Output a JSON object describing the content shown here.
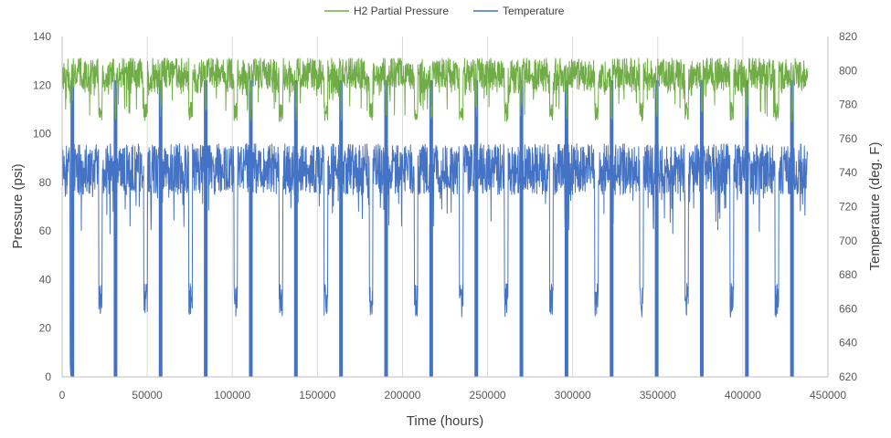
{
  "chart_data": {
    "type": "line",
    "xlabel": "Time (hours)",
    "ylabel": "Pressure (psi)",
    "y2label": "Temperature (deg. F)",
    "xlim": [
      0,
      450000
    ],
    "ylim": [
      0,
      140
    ],
    "y2lim": [
      620,
      820
    ],
    "x_ticks": [
      "0",
      "50000",
      "100000",
      "150000",
      "200000",
      "250000",
      "300000",
      "350000",
      "400000",
      "450000"
    ],
    "y_ticks": [
      "0",
      "20",
      "40",
      "60",
      "80",
      "100",
      "120",
      "140"
    ],
    "y2_ticks": [
      "620",
      "640",
      "660",
      "680",
      "700",
      "720",
      "740",
      "760",
      "780",
      "800",
      "820"
    ],
    "grid": "vertical",
    "legend_position": "top",
    "x_end": 438000,
    "cycle_hours": 26500,
    "series": [
      {
        "name": "H2 Partial Pressure",
        "axis": "left",
        "color": "#70AD47",
        "typical_range": [
          115,
          130
        ],
        "dip_low": 105
      },
      {
        "name": "Temperature",
        "axis": "right",
        "color": "#4472C4",
        "typical_range": [
          725,
          755
        ],
        "dip_low": 655,
        "shutdown_low": 620
      }
    ]
  }
}
